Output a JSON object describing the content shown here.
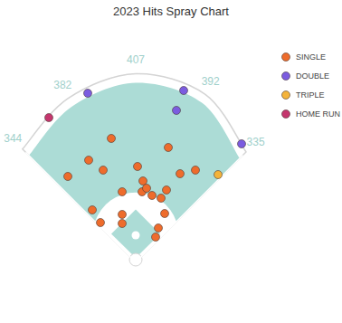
{
  "chart_data": {
    "type": "scatter",
    "title": "2023 Hits Spray Chart",
    "xlim": [
      -280,
      280
    ],
    "ylim": [
      -40,
      500
    ],
    "tick_labels": false,
    "legend": "upper right",
    "fence_distances": [
      344,
      382,
      407,
      392,
      335
    ],
    "series": [
      {
        "name": "SINGLE",
        "color": "#ee6c2c",
        "x": [
          -54,
          72,
          -104,
          -72,
          4,
          -150,
          16,
          98,
          132,
          -30,
          14,
          24,
          36,
          56,
          68,
          -96,
          -30,
          64,
          -78,
          -30,
          50,
          44
        ],
        "y": [
          274,
          254,
          226,
          204,
          212,
          190,
          180,
          196,
          204,
          156,
          156,
          164,
          148,
          142,
          160,
          116,
          106,
          108,
          88,
          86,
          76,
          56
        ]
      },
      {
        "name": "DOUBLE",
        "color": "#7b5ce0",
        "x": [
          -106,
          106,
          90,
          234
        ],
        "y": [
          374,
          380,
          336,
          262
        ]
      },
      {
        "name": "TRIPLE",
        "color": "#f4b33a",
        "x": [
          182
        ],
        "y": [
          194
        ]
      },
      {
        "name": "HOME RUN",
        "color": "#c5366e",
        "x": [
          -192
        ],
        "y": [
          320
        ]
      }
    ]
  }
}
